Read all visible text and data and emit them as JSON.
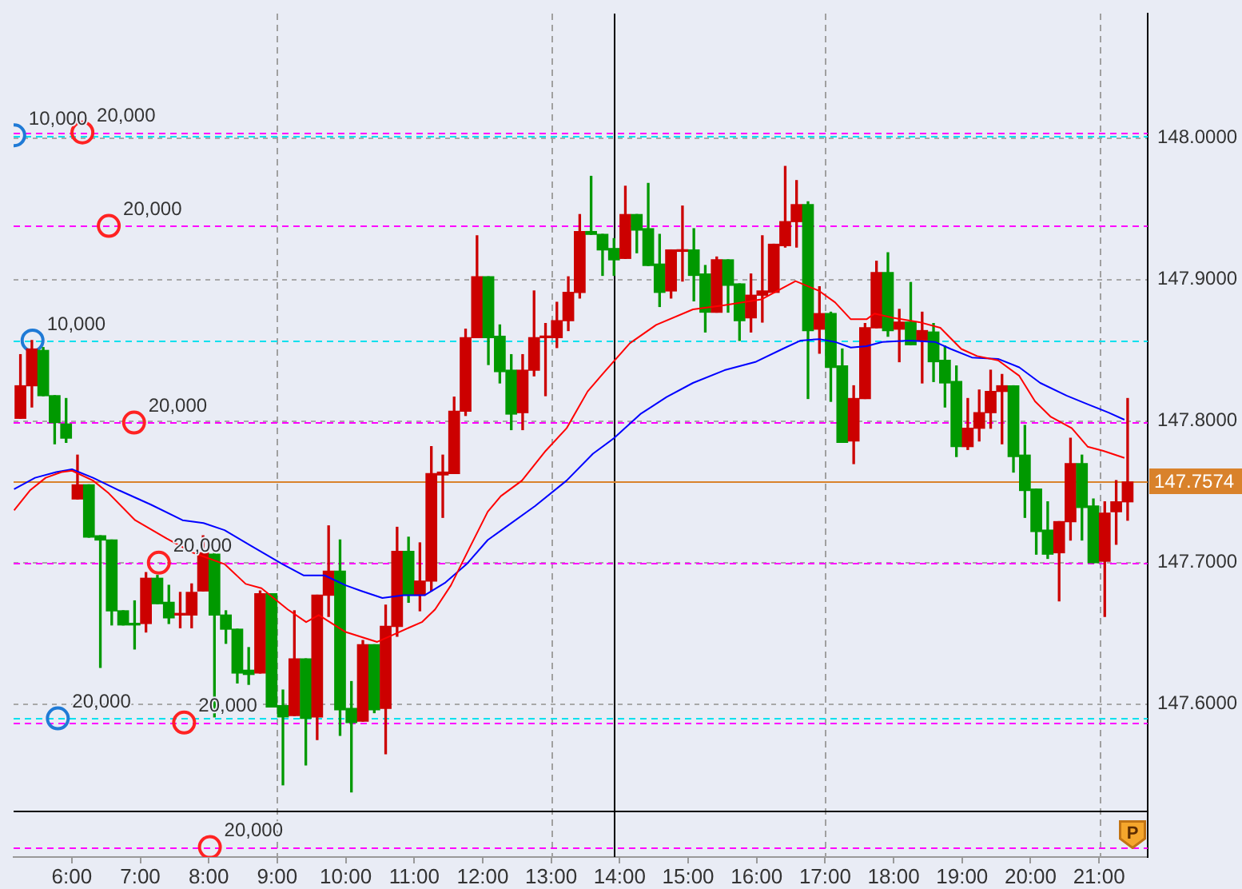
{
  "chart_data": {
    "type": "candlestick",
    "x": [
      5.25,
      5.417,
      5.583,
      5.75,
      5.917,
      6.083,
      6.25,
      6.417,
      6.583,
      6.75,
      6.917,
      7.083,
      7.25,
      7.417,
      7.583,
      7.75,
      7.917,
      8.083,
      8.25,
      8.417,
      8.583,
      8.75,
      8.917,
      9.083,
      9.25,
      9.417,
      9.583,
      9.75,
      9.917,
      10.083,
      10.25,
      10.417,
      10.583,
      10.75,
      10.917,
      11.083,
      11.25,
      11.417,
      11.583,
      11.75,
      11.917,
      12.083,
      12.25,
      12.417,
      12.583,
      12.75,
      12.917,
      13.083,
      13.25,
      13.417,
      13.583,
      13.75,
      13.917,
      14.083,
      14.25,
      14.417,
      14.583,
      14.75,
      14.917,
      15.083,
      15.25,
      15.417,
      15.583,
      15.75,
      15.917,
      16.083,
      16.25,
      16.417,
      16.583,
      16.75,
      16.917,
      17.083,
      17.25,
      17.417,
      17.583,
      17.75,
      17.917,
      18.083,
      18.25,
      18.417,
      18.583,
      18.75,
      18.917,
      19.083,
      19.25,
      19.417,
      19.583,
      19.75,
      19.917,
      20.083,
      20.25,
      20.417,
      20.583,
      20.75,
      20.917,
      21.083,
      21.25,
      21.417
    ],
    "ohlc": [
      [
        147.802,
        147.847,
        147.802,
        147.825
      ],
      [
        147.825,
        147.857,
        147.81,
        147.851
      ],
      [
        147.85,
        147.852,
        147.818,
        147.818
      ],
      [
        147.818,
        147.818,
        147.784,
        147.799
      ],
      [
        147.798,
        147.816,
        147.785,
        147.788
      ],
      [
        147.745,
        147.776,
        147.745,
        147.755
      ],
      [
        147.755,
        147.755,
        147.718,
        147.718
      ],
      [
        147.719,
        147.719,
        147.626,
        147.716
      ],
      [
        147.716,
        147.716,
        147.656,
        147.666
      ],
      [
        147.666,
        147.666,
        147.656,
        147.656
      ],
      [
        147.656,
        147.673,
        147.639,
        147.656
      ],
      [
        147.657,
        147.693,
        147.651,
        147.689
      ],
      [
        147.689,
        147.691,
        147.671,
        147.671
      ],
      [
        147.672,
        147.684,
        147.657,
        147.661
      ],
      [
        147.663,
        147.679,
        147.654,
        147.663
      ],
      [
        147.663,
        147.685,
        147.654,
        147.679
      ],
      [
        147.68,
        147.719,
        147.68,
        147.707
      ],
      [
        147.706,
        147.708,
        147.591,
        147.663
      ],
      [
        147.663,
        147.666,
        147.643,
        147.653
      ],
      [
        147.653,
        147.653,
        147.615,
        147.622
      ],
      [
        147.624,
        147.64,
        147.614,
        147.621
      ],
      [
        147.622,
        147.68,
        147.622,
        147.678
      ],
      [
        147.678,
        147.678,
        147.598,
        147.598
      ],
      [
        147.599,
        147.61,
        147.543,
        147.591
      ],
      [
        147.592,
        147.666,
        147.592,
        147.632
      ],
      [
        147.632,
        147.632,
        147.557,
        147.59
      ],
      [
        147.591,
        147.677,
        147.575,
        147.677
      ],
      [
        147.677,
        147.726,
        147.662,
        147.694
      ],
      [
        147.694,
        147.716,
        147.578,
        147.596
      ],
      [
        147.597,
        147.616,
        147.538,
        147.587
      ],
      [
        147.588,
        147.645,
        147.588,
        147.642
      ],
      [
        147.642,
        147.642,
        147.594,
        147.596
      ],
      [
        147.597,
        147.67,
        147.565,
        147.655
      ],
      [
        147.655,
        147.725,
        147.648,
        147.708
      ],
      [
        147.708,
        147.718,
        147.672,
        147.677
      ],
      [
        147.677,
        147.714,
        147.666,
        147.687
      ],
      [
        147.687,
        147.782,
        147.68,
        147.763
      ],
      [
        147.762,
        147.776,
        147.732,
        147.764
      ],
      [
        147.763,
        147.817,
        147.763,
        147.807
      ],
      [
        147.807,
        147.865,
        147.804,
        147.859
      ],
      [
        147.859,
        147.931,
        147.859,
        147.902
      ],
      [
        147.902,
        147.902,
        147.84,
        147.859
      ],
      [
        147.86,
        147.868,
        147.827,
        147.835
      ],
      [
        147.836,
        147.847,
        147.794,
        147.805
      ],
      [
        147.806,
        147.847,
        147.794,
        147.836
      ],
      [
        147.836,
        147.892,
        147.832,
        147.859
      ],
      [
        147.859,
        147.869,
        147.818,
        147.859
      ],
      [
        147.859,
        147.884,
        147.852,
        147.871
      ],
      [
        147.871,
        147.902,
        147.864,
        147.891
      ],
      [
        147.891,
        147.946,
        147.887,
        147.934
      ],
      [
        147.934,
        147.973,
        147.932,
        147.932
      ],
      [
        147.932,
        147.932,
        147.903,
        147.921
      ],
      [
        147.922,
        147.929,
        147.903,
        147.914
      ],
      [
        147.915,
        147.966,
        147.915,
        147.946
      ],
      [
        147.946,
        147.946,
        147.919,
        147.935
      ],
      [
        147.936,
        147.968,
        147.91,
        147.91
      ],
      [
        147.911,
        147.932,
        147.881,
        147.891
      ],
      [
        147.892,
        147.921,
        147.887,
        147.921
      ],
      [
        147.92,
        147.952,
        147.899,
        147.921
      ],
      [
        147.921,
        147.936,
        147.885,
        147.903
      ],
      [
        147.904,
        147.91,
        147.863,
        147.877
      ],
      [
        147.877,
        147.916,
        147.877,
        147.914
      ],
      [
        147.914,
        147.914,
        147.877,
        147.896
      ],
      [
        147.897,
        147.897,
        147.857,
        147.871
      ],
      [
        147.873,
        147.904,
        147.863,
        147.889
      ],
      [
        147.889,
        147.931,
        147.87,
        147.892
      ],
      [
        147.891,
        147.925,
        147.891,
        147.925
      ],
      [
        147.924,
        147.98,
        147.923,
        147.941
      ],
      [
        147.941,
        147.97,
        147.923,
        147.953
      ],
      [
        147.953,
        147.955,
        147.816,
        147.864
      ],
      [
        147.865,
        147.895,
        147.848,
        147.876
      ],
      [
        147.876,
        147.877,
        147.814,
        147.838
      ],
      [
        147.839,
        147.851,
        147.785,
        147.785
      ],
      [
        147.786,
        147.825,
        147.77,
        147.816
      ],
      [
        147.816,
        147.869,
        147.816,
        147.866
      ],
      [
        147.866,
        147.913,
        147.866,
        147.905
      ],
      [
        147.905,
        147.919,
        147.86,
        147.864
      ],
      [
        147.865,
        147.879,
        147.842,
        147.87
      ],
      [
        147.87,
        147.898,
        147.854,
        147.854
      ],
      [
        147.857,
        147.877,
        147.827,
        147.864
      ],
      [
        147.863,
        147.869,
        147.828,
        147.842
      ],
      [
        147.843,
        147.853,
        147.81,
        147.827
      ],
      [
        147.828,
        147.839,
        147.775,
        147.782
      ],
      [
        147.782,
        147.816,
        147.78,
        147.795
      ],
      [
        147.795,
        147.822,
        147.786,
        147.806
      ],
      [
        147.806,
        147.836,
        147.795,
        147.821
      ],
      [
        147.821,
        147.833,
        147.784,
        147.825
      ],
      [
        147.825,
        147.825,
        147.764,
        147.775
      ],
      [
        147.776,
        147.797,
        147.732,
        147.751
      ],
      [
        147.752,
        147.752,
        147.706,
        147.722
      ],
      [
        147.723,
        147.743,
        147.703,
        147.706
      ],
      [
        147.707,
        147.729,
        147.673,
        147.729
      ],
      [
        147.729,
        147.788,
        147.716,
        147.77
      ],
      [
        147.77,
        147.776,
        147.716,
        147.739
      ],
      [
        147.74,
        147.745,
        147.7,
        147.7
      ],
      [
        147.701,
        147.743,
        147.662,
        147.735
      ],
      [
        147.736,
        147.758,
        147.713,
        147.743
      ],
      [
        147.743,
        147.816,
        147.73,
        147.757
      ]
    ],
    "colors": [
      "#cc0000",
      "#cc0000",
      "#009900",
      "#009900",
      "#009900",
      "#cc0000",
      "#009900",
      "#009900",
      "#009900",
      "#009900",
      "#009900",
      "#cc0000",
      "#009900",
      "#009900",
      "#cc0000",
      "#cc0000",
      "#cc0000",
      "#009900",
      "#009900",
      "#009900",
      "#009900",
      "#cc0000",
      "#009900",
      "#009900",
      "#cc0000",
      "#009900",
      "#cc0000",
      "#cc0000",
      "#009900",
      "#009900",
      "#cc0000",
      "#009900",
      "#cc0000",
      "#cc0000",
      "#009900",
      "#cc0000",
      "#cc0000",
      "#cc0000",
      "#cc0000",
      "#cc0000",
      "#cc0000",
      "#009900",
      "#009900",
      "#009900",
      "#cc0000",
      "#cc0000",
      "#cc0000",
      "#cc0000",
      "#cc0000",
      "#cc0000",
      "#009900",
      "#009900",
      "#009900",
      "#cc0000",
      "#009900",
      "#009900",
      "#009900",
      "#cc0000",
      "#cc0000",
      "#009900",
      "#009900",
      "#cc0000",
      "#009900",
      "#009900",
      "#cc0000",
      "#cc0000",
      "#cc0000",
      "#cc0000",
      "#cc0000",
      "#009900",
      "#cc0000",
      "#009900",
      "#009900",
      "#cc0000",
      "#cc0000",
      "#cc0000",
      "#009900",
      "#cc0000",
      "#009900",
      "#cc0000",
      "#009900",
      "#009900",
      "#009900",
      "#cc0000",
      "#cc0000",
      "#cc0000",
      "#cc0000",
      "#009900",
      "#009900",
      "#009900",
      "#009900",
      "#cc0000",
      "#cc0000",
      "#009900",
      "#009900",
      "#cc0000",
      "#cc0000",
      "#cc0000"
    ],
    "series": [
      {
        "type": "line",
        "color": "#ff0000",
        "x": [
          5.157,
          5.388,
          5.618,
          5.849,
          6.003,
          6.31,
          6.54,
          6.925,
          7.386,
          7.769,
          8.23,
          8.539,
          8.769,
          9.152,
          9.422,
          9.606,
          9.998,
          10.459,
          10.69,
          10.92,
          11.112,
          11.305,
          11.536,
          11.803,
          12.073,
          12.264,
          12.573,
          12.919,
          13.225,
          13.532,
          13.763,
          14.148,
          14.533,
          15.07,
          15.531,
          16.068,
          16.377,
          16.568,
          16.914,
          17.144,
          17.375,
          17.605,
          17.721,
          17.99,
          18.373,
          18.682,
          18.988,
          19.219,
          19.526,
          19.835,
          20.065,
          20.296,
          20.602,
          20.833,
          21.063,
          21.37
        ],
        "values": [
          147.737,
          147.751,
          147.76,
          147.764,
          147.765,
          147.758,
          147.749,
          147.73,
          147.717,
          147.707,
          147.699,
          147.685,
          147.682,
          147.667,
          147.658,
          147.663,
          147.651,
          147.644,
          147.649,
          147.654,
          147.658,
          147.667,
          147.684,
          147.71,
          147.736,
          147.747,
          147.758,
          147.779,
          147.795,
          147.821,
          147.834,
          147.855,
          147.868,
          147.879,
          147.882,
          147.886,
          147.894,
          147.899,
          147.892,
          147.884,
          147.872,
          147.872,
          147.876,
          147.873,
          147.87,
          147.866,
          147.851,
          147.846,
          147.843,
          147.832,
          147.814,
          147.803,
          147.795,
          147.782,
          147.779,
          147.774
        ]
      },
      {
        "type": "line",
        "color": "#0000ff",
        "x": [
          5.157,
          5.464,
          5.773,
          6.003,
          6.31,
          6.695,
          7.156,
          7.617,
          7.923,
          8.23,
          8.615,
          9.076,
          9.383,
          9.692,
          9.998,
          10.229,
          10.535,
          10.844,
          11.151,
          11.457,
          11.766,
          12.073,
          12.303,
          12.764,
          13.225,
          13.61,
          13.917,
          14.302,
          14.685,
          15.07,
          15.531,
          15.992,
          16.377,
          16.644,
          16.914,
          17.144,
          17.375,
          17.605,
          17.836,
          18.221,
          18.604,
          18.834,
          19.143,
          19.526,
          19.835,
          20.141,
          20.526,
          20.833,
          21.14,
          21.37
        ],
        "values": [
          147.752,
          147.76,
          147.764,
          147.766,
          147.76,
          147.751,
          147.741,
          147.73,
          147.728,
          147.723,
          147.712,
          147.699,
          147.691,
          147.691,
          147.684,
          147.68,
          147.675,
          147.677,
          147.677,
          147.686,
          147.699,
          147.716,
          147.724,
          147.74,
          147.758,
          147.777,
          147.788,
          147.805,
          147.817,
          147.827,
          147.836,
          147.842,
          147.851,
          147.857,
          147.858,
          147.856,
          147.852,
          147.853,
          147.856,
          147.857,
          147.856,
          147.851,
          147.845,
          147.844,
          147.838,
          147.827,
          147.818,
          147.812,
          147.806,
          147.801
        ]
      },
      {
        "type": "scatter",
        "color": "#1f7ad6",
        "marker": "circle",
        "x": [
          5.16,
          5.427,
          5.796
        ],
        "values": [
          148.002,
          147.857,
          147.59
        ]
      },
      {
        "type": "scatter",
        "color": "#ff2222",
        "marker": "circle",
        "x": [
          6.155,
          6.54,
          6.909,
          7.271,
          7.64,
          8.016
        ],
        "values": [
          148.004,
          147.938,
          147.799,
          147.7,
          147.587,
          147.499
        ]
      }
    ],
    "xlim": [
      5.15,
      21.71
    ],
    "xticks": [
      {
        "value": 6,
        "label": "6:00"
      },
      {
        "value": 7,
        "label": "7:00"
      },
      {
        "value": 8,
        "label": "8:00"
      },
      {
        "value": 9,
        "label": "9:00"
      },
      {
        "value": 10,
        "label": "10:00"
      },
      {
        "value": 11,
        "label": "11:00"
      },
      {
        "value": 12,
        "label": "12:00"
      },
      {
        "value": 13,
        "label": "13:00"
      },
      {
        "value": 14,
        "label": "14:00"
      },
      {
        "value": 15,
        "label": "15:00"
      },
      {
        "value": 16,
        "label": "16:00"
      },
      {
        "value": 17,
        "label": "17:00"
      },
      {
        "value": 18,
        "label": "18:00"
      },
      {
        "value": 19,
        "label": "19:00"
      },
      {
        "value": 20,
        "label": "20:00"
      },
      {
        "value": 21,
        "label": "21:00"
      }
    ],
    "ylim": [
      147.492,
      148.088
    ],
    "yticks": [
      {
        "value": 147.6,
        "label": "147.6000"
      },
      {
        "value": 147.7,
        "label": "147.7000"
      },
      {
        "value": 147.8,
        "label": "147.8000"
      },
      {
        "value": 147.9,
        "label": "147.9000"
      },
      {
        "value": 148,
        "label": "148.0000"
      }
    ],
    "grid": "y",
    "ref_lines": [
      {
        "axis": "x",
        "value": 9,
        "color": "#a0a0a0",
        "line_style": "dashed"
      },
      {
        "axis": "x",
        "value": 13,
        "color": "#a0a0a0",
        "line_style": "dashed"
      },
      {
        "axis": "x",
        "value": 17,
        "color": "#a0a0a0",
        "line_style": "dashed"
      },
      {
        "axis": "x",
        "value": 21,
        "color": "#a0a0a0",
        "line_style": "dashed"
      },
      {
        "axis": "x",
        "value": 13.917,
        "color": "#000000",
        "line_style": "solid"
      },
      {
        "axis": "y",
        "value": 148.004,
        "color": "#ff00ff",
        "line_style": "dashed"
      },
      {
        "axis": "y",
        "value": 148.002,
        "color": "#00e0ee",
        "line_style": "dashed"
      },
      {
        "axis": "y",
        "value": 147.938,
        "color": "#ff00ff",
        "line_style": "dashed"
      },
      {
        "axis": "y",
        "value": 147.857,
        "color": "#00e0ee",
        "line_style": "dashed"
      },
      {
        "axis": "y",
        "value": 147.799,
        "color": "#ff00ff",
        "line_style": "dashed"
      },
      {
        "axis": "y",
        "value": 147.7,
        "color": "#ff00ff",
        "line_style": "dashed"
      },
      {
        "axis": "y",
        "value": 147.59,
        "color": "#00e0ee",
        "line_style": "dashed"
      },
      {
        "axis": "y",
        "value": 147.587,
        "color": "#ff00ff",
        "line_style": "dashed"
      },
      {
        "axis": "y",
        "value": 147.499,
        "color": "#ff00ff",
        "line_style": "dashed"
      },
      {
        "axis": "y",
        "value": 147.525,
        "color": "#000000",
        "line_style": "solid"
      },
      {
        "axis": "y",
        "value": 147.7574,
        "label": "147.7574",
        "color": "#d9822b",
        "line_style": "solid"
      }
    ],
    "annotations": [
      {
        "text": "10,000",
        "x": 5.16,
        "y": 148.002
      },
      {
        "text": "10,000",
        "x": 5.427,
        "y": 147.857
      },
      {
        "text": "20,000",
        "x": 5.796,
        "y": 147.59
      },
      {
        "text": "20,000",
        "x": 6.155,
        "y": 148.004
      },
      {
        "text": "20,000",
        "x": 6.54,
        "y": 147.938
      },
      {
        "text": "20,000",
        "x": 6.909,
        "y": 147.799
      },
      {
        "text": "20,000",
        "x": 7.271,
        "y": 147.7
      },
      {
        "text": "20,000",
        "x": 7.64,
        "y": 147.587
      },
      {
        "text": "20,000",
        "x": 8.016,
        "y": 147.499
      },
      "P"
    ]
  }
}
